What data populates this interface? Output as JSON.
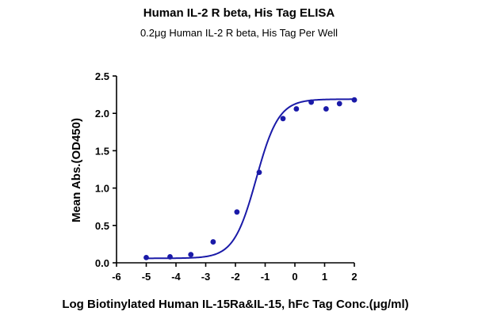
{
  "chart_data": {
    "type": "scatter",
    "title": "Human IL-2 R beta, His Tag ELISA",
    "subtitle": "0.2μg Human IL-2 R beta, His Tag Per Well",
    "xlabel": "Log Biotinylated Human IL-15Ra&IL-15, hFc Tag Conc.(μg/ml)",
    "ylabel": "Mean Abs.(OD450)",
    "xlim": [
      -6,
      2
    ],
    "ylim": [
      0,
      2.5
    ],
    "xticks": [
      "-6",
      "-5",
      "-4",
      "-3",
      "-2",
      "-1",
      "0",
      "1",
      "2"
    ],
    "yticks": [
      "0.0",
      "0.5",
      "1.0",
      "1.5",
      "2.0",
      "2.5"
    ],
    "grid": false,
    "color": "#1a1aa8",
    "series": [
      {
        "points": [
          {
            "x": -5.0,
            "y": 0.07
          },
          {
            "x": -4.2,
            "y": 0.08
          },
          {
            "x": -3.5,
            "y": 0.11
          },
          {
            "x": -2.75,
            "y": 0.28
          },
          {
            "x": -1.95,
            "y": 0.68
          },
          {
            "x": -1.2,
            "y": 1.21
          },
          {
            "x": -0.4,
            "y": 1.93
          },
          {
            "x": 0.05,
            "y": 2.06
          },
          {
            "x": 0.55,
            "y": 2.15
          },
          {
            "x": 1.05,
            "y": 2.06
          },
          {
            "x": 1.5,
            "y": 2.13
          },
          {
            "x": 2.0,
            "y": 2.18
          }
        ],
        "fit": {
          "model": "4PL",
          "bottom": 0.06,
          "top": 2.19,
          "logEC50": -1.3,
          "hill": 1.15
        }
      }
    ]
  }
}
